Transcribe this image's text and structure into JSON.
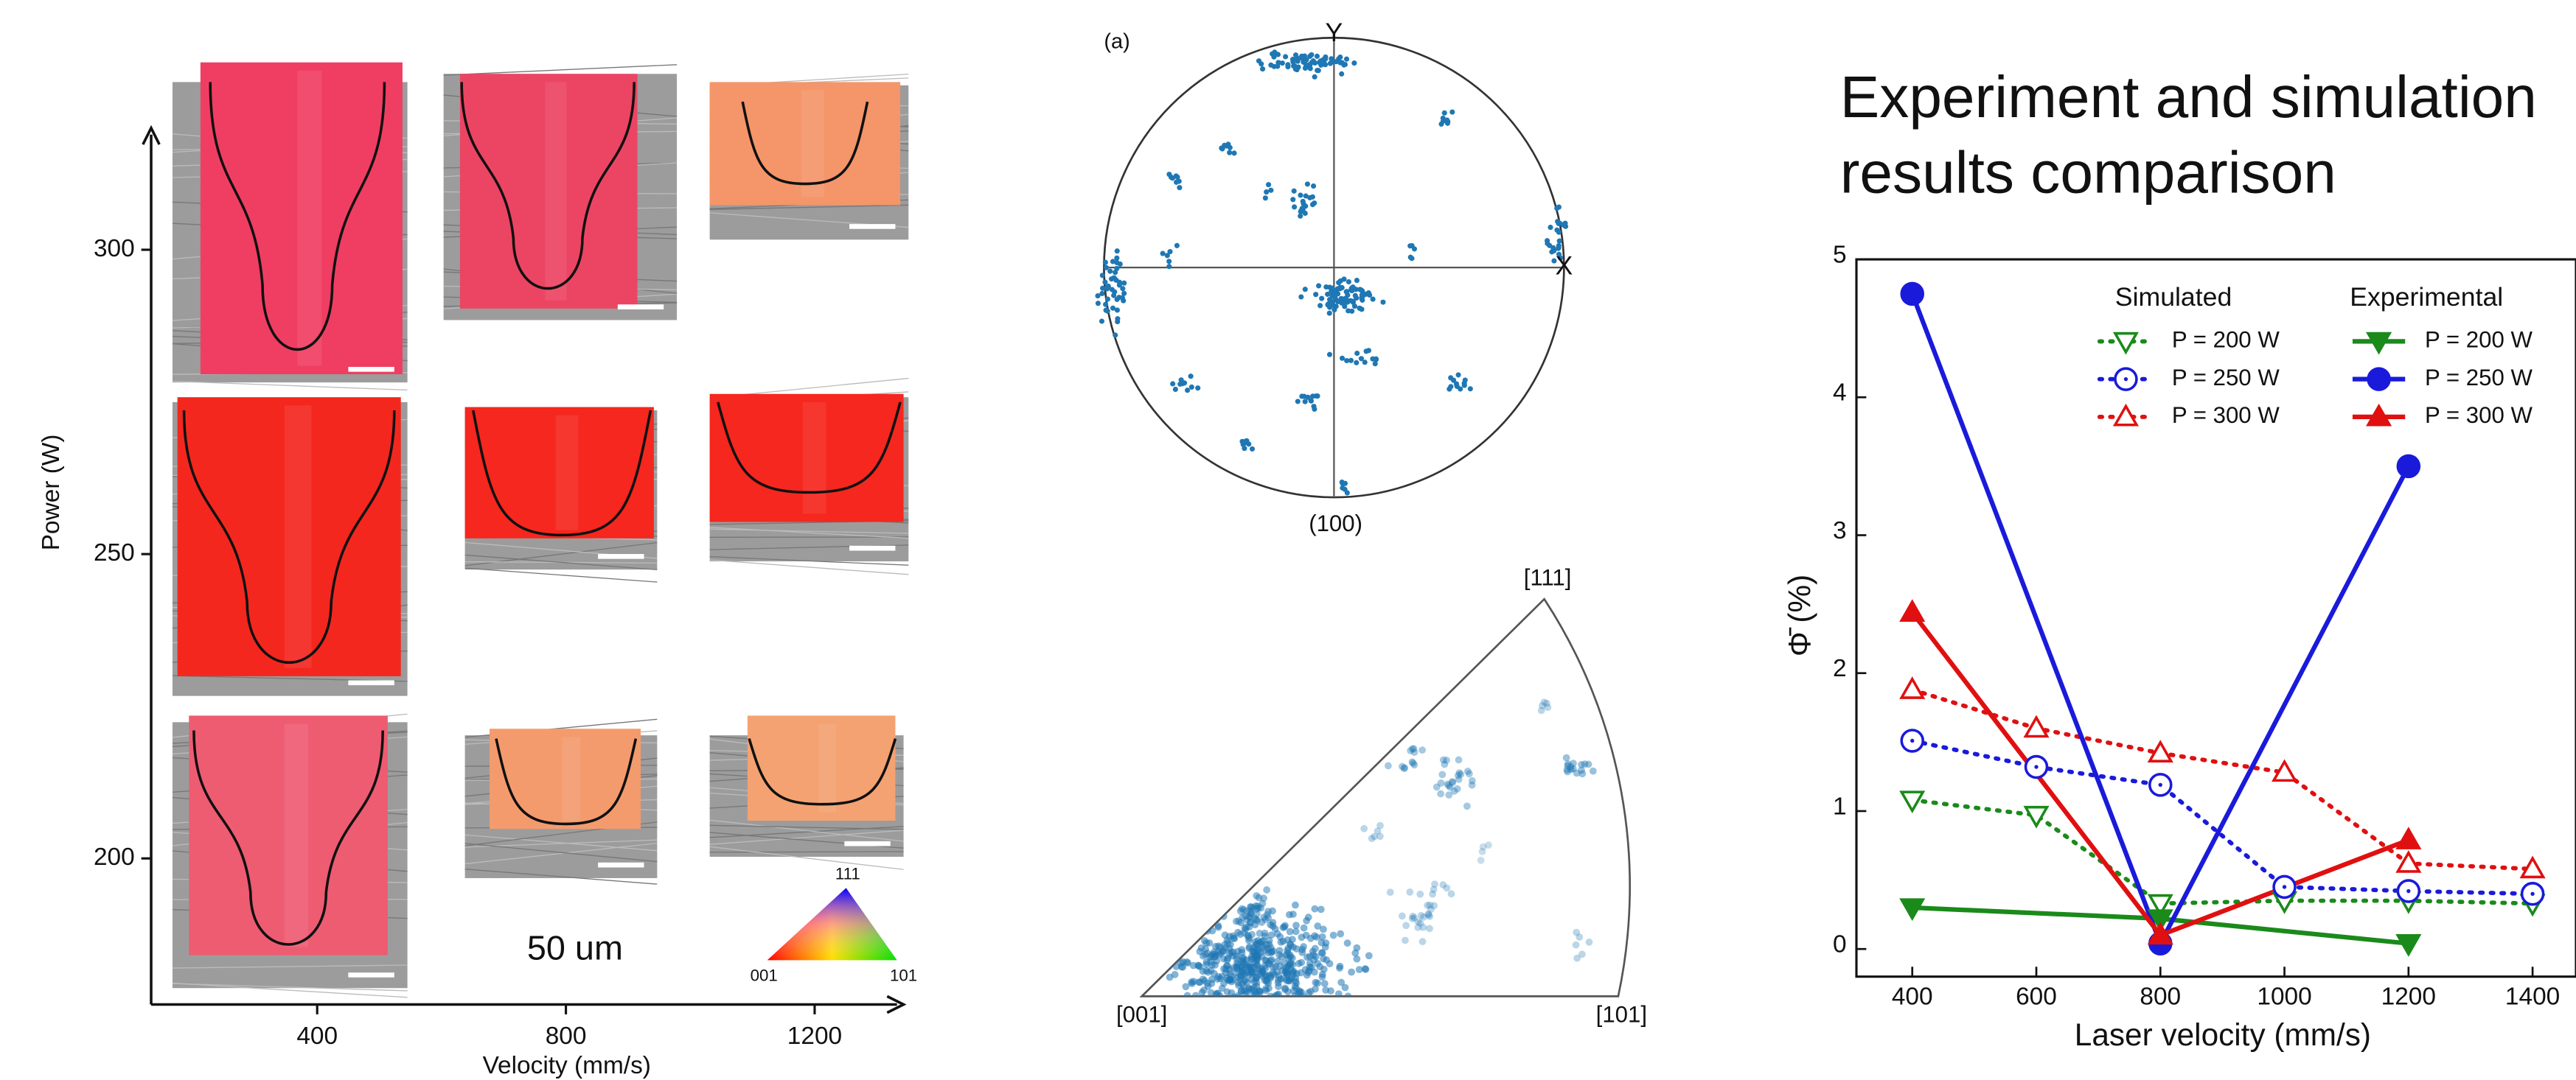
{
  "micrograph_panel": {
    "xlabel": "Velocity (mm/s)",
    "ylabel": "Power (W)",
    "xlim": [
      133,
      1343
    ],
    "ylim": [
      176,
      320
    ],
    "xticks": [
      400,
      800,
      1200
    ],
    "yticks": [
      200,
      250,
      300
    ],
    "scale_bar": "50 um",
    "ipf_key": {
      "top": "111",
      "left": "001",
      "right": "101"
    }
  },
  "pole_figure": {
    "panel_label": "(a)",
    "axis_y": "Y",
    "axis_x": "X",
    "direction": "(100)"
  },
  "inverse_pole_figure": {
    "top": "[111]",
    "left": "[001]",
    "right": "[101]"
  },
  "chart_data": {
    "type": "line",
    "title": "Experiment and simulation results comparison",
    "xlabel": "Laser velocity (mm/s)",
    "ylabel": "Φ̄ (%)",
    "xlim": [
      310,
      1470
    ],
    "ylim": [
      -0.2,
      5
    ],
    "xticks": [
      400,
      600,
      800,
      1000,
      1200,
      1400
    ],
    "yticks": [
      0,
      1,
      2,
      3,
      4,
      5
    ],
    "series": [
      {
        "name": "P = 200 W",
        "group": "Simulated",
        "color": "#1a8a1a",
        "marker": "triangle-down",
        "filled": false,
        "dash": "dotted",
        "x": [
          400,
          600,
          800,
          1000,
          1200,
          1400
        ],
        "values": [
          1.08,
          0.97,
          0.33,
          0.35,
          0.35,
          0.33
        ]
      },
      {
        "name": "P = 250 W",
        "group": "Simulated",
        "color": "#1a1adb",
        "marker": "circle",
        "filled": false,
        "dash": "dotted",
        "x": [
          400,
          600,
          800,
          1000,
          1200,
          1400
        ],
        "values": [
          1.51,
          1.32,
          1.19,
          0.45,
          0.42,
          0.4
        ]
      },
      {
        "name": "P = 300 W",
        "group": "Simulated",
        "color": "#e01010",
        "marker": "triangle-up",
        "filled": false,
        "dash": "dotted",
        "x": [
          400,
          600,
          800,
          1000,
          1200,
          1400
        ],
        "values": [
          1.88,
          1.6,
          1.42,
          1.28,
          0.62,
          0.58
        ]
      },
      {
        "name": "P = 200 W",
        "group": "Experimental",
        "color": "#1a8a1a",
        "marker": "triangle-down",
        "filled": true,
        "dash": "solid",
        "x": [
          400,
          800,
          1200
        ],
        "values": [
          0.3,
          0.22,
          0.04
        ]
      },
      {
        "name": "P = 250 W",
        "group": "Experimental",
        "color": "#1a1adb",
        "marker": "circle",
        "filled": true,
        "dash": "solid",
        "x": [
          400,
          800,
          1200
        ],
        "values": [
          4.75,
          0.04,
          3.5
        ]
      },
      {
        "name": "P = 300 W",
        "group": "Experimental",
        "color": "#e01010",
        "marker": "triangle-up",
        "filled": true,
        "dash": "solid",
        "x": [
          400,
          800,
          1200
        ],
        "values": [
          2.44,
          0.1,
          0.79
        ]
      }
    ]
  }
}
